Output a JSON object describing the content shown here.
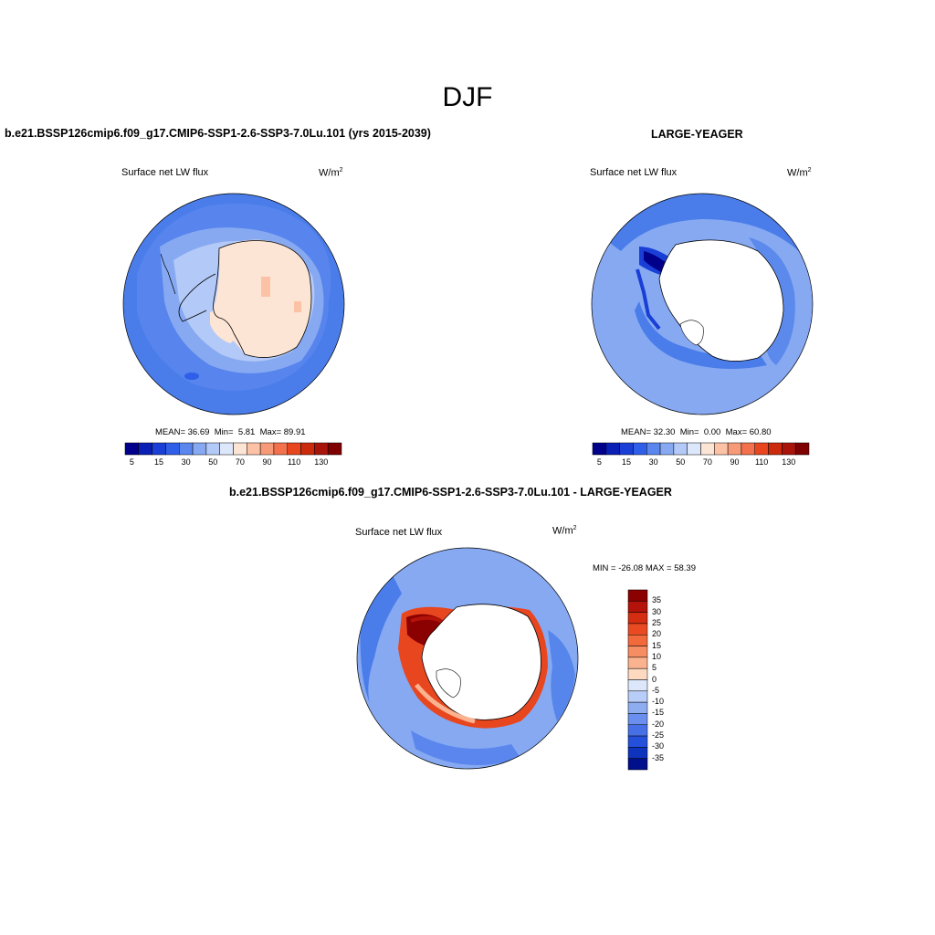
{
  "page_title": "DJF",
  "panels": [
    {
      "title": "b.e21.BSSP126cmip6.f09_g17.CMIP6-SSP1-2.6-SSP3-7.0Lu.101 (yrs 2015-2039)",
      "left_label": "Surface net LW flux",
      "right_label": "W/m",
      "right_label_sup": "2",
      "stats": {
        "mean_label": "MEAN=",
        "mean": "36.69",
        "min_label": "Min=",
        "min": "5.81",
        "max_label": "Max=",
        "max": "89.91"
      }
    },
    {
      "title": "LARGE-YEAGER",
      "left_label": "Surface net LW flux",
      "right_label": "W/m",
      "right_label_sup": "2",
      "stats": {
        "mean_label": "MEAN=",
        "mean": "32.30",
        "min_label": "Min=",
        "min": "0.00",
        "max_label": "Max=",
        "max": "60.80"
      }
    },
    {
      "title": "b.e21.BSSP126cmip6.f09_g17.CMIP6-SSP1-2.6-SSP3-7.0Lu.101 - LARGE-YEAGER",
      "left_label": "Surface net LW flux",
      "right_label": "W/m",
      "right_label_sup": "2",
      "minmax": "MIN = -26.08 MAX =  58.39"
    }
  ],
  "colorbar_horizontal": {
    "tick_labels": [
      "5",
      "15",
      "30",
      "50",
      "70",
      "90",
      "110",
      "130"
    ],
    "colors": [
      "#00008b",
      "#0a1fb4",
      "#1a3fd6",
      "#2f5ee8",
      "#5a86ee",
      "#86a9f2",
      "#b3c9f7",
      "#dde7fb",
      "#fde5d5",
      "#fbc2a6",
      "#f79a78",
      "#f3714c",
      "#e8461f",
      "#cc2a0c",
      "#a8140a",
      "#7f0000"
    ]
  },
  "colorbar_vertical": {
    "tick_labels": [
      "35",
      "30",
      "25",
      "20",
      "15",
      "10",
      "5",
      "0",
      "-5",
      "-10",
      "-15",
      "-20",
      "-25",
      "-30",
      "-35"
    ],
    "colors": [
      "#8b0000",
      "#b3130b",
      "#d52d11",
      "#ea4a22",
      "#f26a3c",
      "#f78d62",
      "#fab28f",
      "#fdd9c0",
      "#dde7fb",
      "#b8cdf7",
      "#8eadf1",
      "#6a8fee",
      "#4770e7",
      "#2550dc",
      "#0e33bc",
      "#000f8b"
    ]
  },
  "legend_colors": {
    "ocean_blue": "#4a7de9",
    "ocean_light": "#86a9f2",
    "ocean_dark": "#1a3fd6",
    "land_peach": "#fde5d5",
    "white": "#ffffff",
    "red_dark": "#8b0000",
    "red": "#e8461f"
  }
}
